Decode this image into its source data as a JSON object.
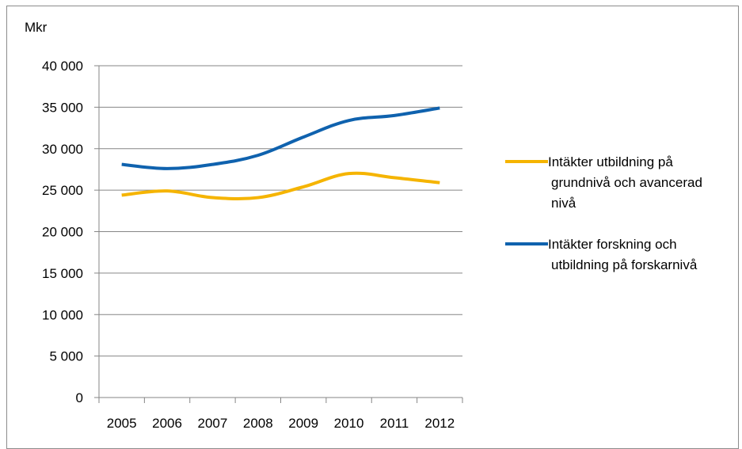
{
  "chart_data": {
    "type": "line",
    "ylabel": "Mkr",
    "categories": [
      "2005",
      "2006",
      "2007",
      "2008",
      "2009",
      "2010",
      "2011",
      "2012"
    ],
    "ylim": [
      0,
      40000
    ],
    "y_ticks": [
      0,
      5000,
      10000,
      15000,
      20000,
      25000,
      30000,
      35000,
      40000
    ],
    "y_tick_labels": [
      "0",
      "5 000",
      "10 000",
      "15 000",
      "20 000",
      "25 000",
      "30 000",
      "35 000",
      "40 000"
    ],
    "grid": true,
    "legend_position": "right",
    "series": [
      {
        "name": "Intäkter utbildning på grundnivå och avancerad nivå",
        "legend_lines": [
          "Intäkter utbildning på",
          "grundnivå och avancerad",
          "nivå"
        ],
        "color": "#F5B400",
        "values": [
          24400,
          24900,
          24100,
          24100,
          25400,
          27000,
          26500,
          25900
        ]
      },
      {
        "name": "Intäkter forskning och utbildning på forskarnivå",
        "legend_lines": [
          "Intäkter forskning och",
          "utbildning på forskarnivå"
        ],
        "color": "#0F62AE",
        "values": [
          28100,
          27600,
          28100,
          29200,
          31400,
          33400,
          34000,
          34900
        ]
      }
    ]
  }
}
